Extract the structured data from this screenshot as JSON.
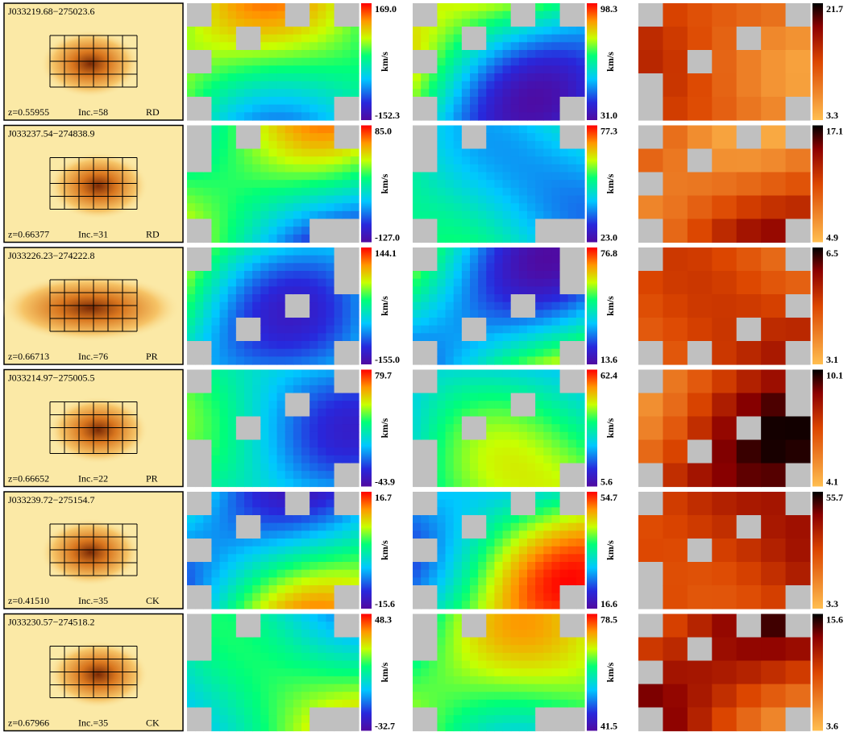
{
  "rows": [
    {
      "id": "J033219.68−275023.6",
      "z": "z=0.55955",
      "inc": "Inc.=58",
      "class": "RD",
      "vel_max": "169.0",
      "vel_min": "-152.3",
      "vel_unit": "km/s",
      "sig_max": "98.3",
      "sig_min": "31.0",
      "sig_unit": "km/s",
      "third_max": "21.7",
      "third_min": "3.3"
    },
    {
      "id": "J033237.54−274838.9",
      "z": "z=0.66377",
      "inc": "Inc.=31",
      "class": "RD",
      "vel_max": "85.0",
      "vel_min": "-127.0",
      "vel_unit": "km/s",
      "sig_max": "77.3",
      "sig_min": "23.0",
      "sig_unit": "km/s",
      "third_max": "17.1",
      "third_min": "4.9"
    },
    {
      "id": "J033226.23−274222.8",
      "z": "z=0.66713",
      "inc": "Inc.=76",
      "class": "PR",
      "vel_max": "144.1",
      "vel_min": "-155.0",
      "vel_unit": "km/s",
      "sig_max": "76.8",
      "sig_min": "13.6",
      "sig_unit": "km/s",
      "third_max": "6.5",
      "third_min": "3.1"
    },
    {
      "id": "J033214.97−275005.5",
      "z": "z=0.66652",
      "inc": "Inc.=22",
      "class": "PR",
      "vel_max": "79.7",
      "vel_min": "-43.9",
      "vel_unit": "km/s",
      "sig_max": "62.4",
      "sig_min": "5.6",
      "sig_unit": "km/s",
      "third_max": "10.1",
      "third_min": "4.1"
    },
    {
      "id": "J033239.72−275154.7",
      "z": "z=0.41510",
      "inc": "Inc.=35",
      "class": "CK",
      "vel_max": "16.7",
      "vel_min": "-15.6",
      "vel_unit": "km/s",
      "sig_max": "54.7",
      "sig_min": "16.6",
      "sig_unit": "km/s",
      "third_max": "55.7",
      "third_min": "3.3"
    },
    {
      "id": "J033230.57−274518.2",
      "z": "z=0.67966",
      "inc": "Inc.=35",
      "class": "CK",
      "vel_max": "48.3",
      "vel_min": "-32.7",
      "vel_unit": "km/s",
      "sig_max": "78.5",
      "sig_min": "41.5",
      "sig_unit": "km/s",
      "third_max": "15.6",
      "third_min": "3.6"
    }
  ]
}
